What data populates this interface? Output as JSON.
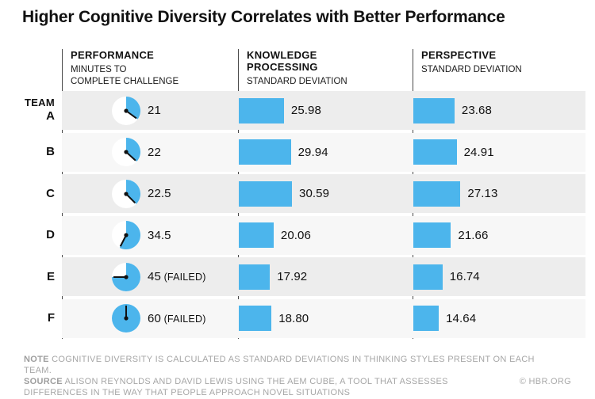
{
  "chart_data": {
    "type": "table",
    "title": "Higher Cognitive Diversity Correlates with Better Performance",
    "header": {
      "team_label": "TEAM",
      "columns": [
        {
          "id": "performance",
          "label": "PERFORMANCE",
          "sublabel": "MINUTES TO\nCOMPLETE CHALLENGE",
          "viz": "clock"
        },
        {
          "id": "knowledge_processing",
          "label": "KNOWLEDGE\nPROCESSING",
          "sublabel": "STANDARD DEVIATION",
          "viz": "bar"
        },
        {
          "id": "perspective",
          "label": "PERSPECTIVE",
          "sublabel": "STANDARD DEVIATION",
          "viz": "bar"
        }
      ]
    },
    "performance_max_minutes": 60,
    "rows": [
      {
        "team": "A",
        "minutes": 21,
        "minutes_label": "21",
        "failed_suffix": "",
        "knowledge_processing": 25.98,
        "knowledge_processing_label": "25.98",
        "perspective": 23.68,
        "perspective_label": "23.68"
      },
      {
        "team": "B",
        "minutes": 22,
        "minutes_label": "22",
        "failed_suffix": "",
        "knowledge_processing": 29.94,
        "knowledge_processing_label": "29.94",
        "perspective": 24.91,
        "perspective_label": "24.91"
      },
      {
        "team": "C",
        "minutes": 22.5,
        "minutes_label": "22.5",
        "failed_suffix": "",
        "knowledge_processing": 30.59,
        "knowledge_processing_label": "30.59",
        "perspective": 27.13,
        "perspective_label": "27.13"
      },
      {
        "team": "D",
        "minutes": 34.5,
        "minutes_label": "34.5",
        "failed_suffix": "",
        "knowledge_processing": 20.06,
        "knowledge_processing_label": "20.06",
        "perspective": 21.66,
        "perspective_label": "21.66"
      },
      {
        "team": "E",
        "minutes": 45,
        "minutes_label": "45",
        "failed_suffix": "(FAILED)",
        "knowledge_processing": 17.92,
        "knowledge_processing_label": "17.92",
        "perspective": 16.74,
        "perspective_label": "16.74"
      },
      {
        "team": "F",
        "minutes": 60,
        "minutes_label": "60",
        "failed_suffix": "(FAILED)",
        "knowledge_processing": 18.8,
        "knowledge_processing_label": "18.80",
        "perspective": 14.64,
        "perspective_label": "14.64"
      }
    ]
  },
  "footer": {
    "note_label": "NOTE",
    "note_text": "COGNITIVE DIVERSITY IS CALCULATED AS STANDARD DEVIATIONS IN THINKING STYLES PRESENT ON EACH TEAM.",
    "source_label": "SOURCE",
    "source_text": "ALISON REYNOLDS AND DAVID LEWIS USING THE AEM CUBE, A TOOL THAT ASSESSES\nDIFFERENCES IN THE WAY THAT PEOPLE APPROACH NOVEL SITUATIONS",
    "credit": "© HBR.ORG"
  },
  "colors": {
    "bar_blue": "#4cb5ec",
    "clock_face": "#ffffff",
    "clock_hand": "#111111",
    "row_odd": "#ededed",
    "row_even": "#f7f7f7",
    "divider": "#4a4a4a",
    "footer_gray": "#a6a6a6"
  }
}
